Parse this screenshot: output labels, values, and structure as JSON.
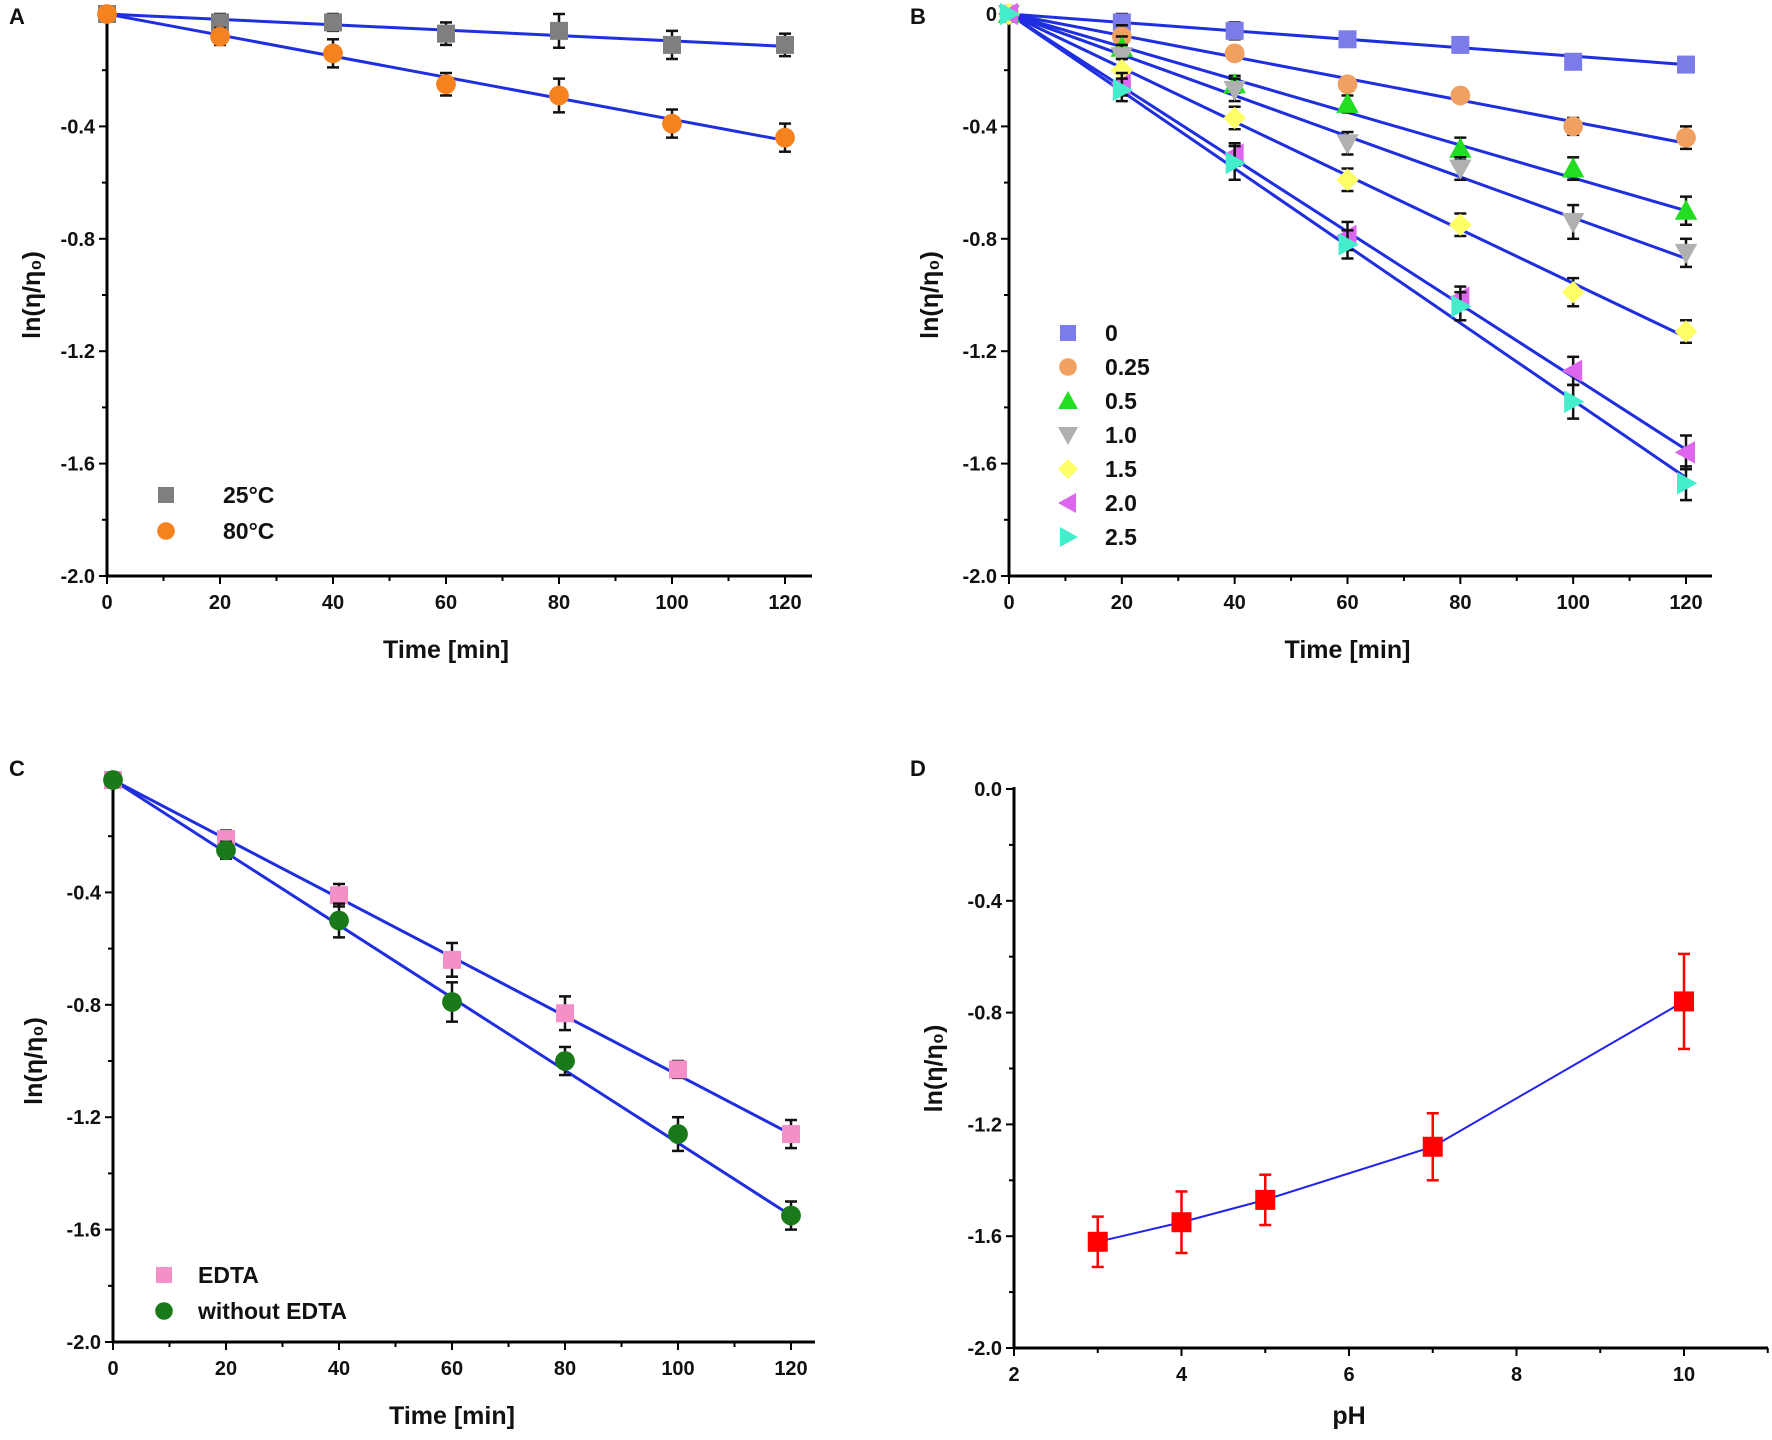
{
  "chart_data": [
    {
      "panel_label": "A",
      "type": "scatter",
      "xlabel": "Time [min]",
      "ylabel": "ln(η/η₀)",
      "xlim": [
        0,
        124
      ],
      "ylim": [
        -2.0,
        0
      ],
      "xticks": [
        0,
        20,
        40,
        60,
        80,
        100,
        120
      ],
      "xtick_labels": [
        "0",
        "20",
        "40",
        "60",
        "80",
        "100",
        "120"
      ],
      "yticks": [
        -0.4,
        -0.8,
        -1.2,
        -1.6,
        -2.0
      ],
      "ytick_labels": [
        "-0.4",
        "-0.8",
        "-1.2",
        "-1.6",
        "-2.0"
      ],
      "legend_position": "bottom-left",
      "fit_line_color": "#1f2fe0",
      "series": [
        {
          "name": "25°C",
          "marker": "square",
          "color": "#7f7f7f",
          "x": [
            0,
            20,
            40,
            60,
            80,
            100,
            120
          ],
          "y": [
            0,
            -0.03,
            -0.03,
            -0.07,
            -0.06,
            -0.11,
            -0.11
          ],
          "error": [
            0,
            0.03,
            0.03,
            0.04,
            0.06,
            0.05,
            0.04
          ],
          "fit": [
            0,
            0,
            120,
            -0.115
          ]
        },
        {
          "name": "80°C",
          "marker": "circle",
          "color": "#f5821f",
          "x": [
            0,
            20,
            40,
            60,
            80,
            100,
            120
          ],
          "y": [
            0,
            -0.08,
            -0.14,
            -0.25,
            -0.29,
            -0.39,
            -0.44
          ],
          "error": [
            0,
            0.03,
            0.05,
            0.04,
            0.06,
            0.05,
            0.05
          ],
          "fit": [
            0,
            0,
            120,
            -0.45
          ]
        }
      ]
    },
    {
      "panel_label": "B",
      "type": "scatter",
      "xlabel": "Time [min]",
      "ylabel": "ln(η/η₀)",
      "xlim": [
        0,
        124
      ],
      "ylim": [
        -2.0,
        0
      ],
      "xticks": [
        0,
        20,
        40,
        60,
        80,
        100,
        120
      ],
      "xtick_labels": [
        "0",
        "20",
        "40",
        "60",
        "80",
        "100",
        "120"
      ],
      "yticks": [
        0,
        -0.4,
        -0.8,
        -1.2,
        -1.6,
        -2.0
      ],
      "ytick_labels": [
        "0",
        "-0.4",
        "-0.8",
        "-1.2",
        "-1.6",
        "-2.0"
      ],
      "legend_position": "bottom-left",
      "fit_line_color": "#1f2fe0",
      "series": [
        {
          "name": "0",
          "marker": "square",
          "color": "#7b7bea",
          "x": [
            0,
            20,
            40,
            60,
            80,
            100,
            120
          ],
          "y": [
            0,
            -0.03,
            -0.06,
            -0.09,
            -0.11,
            -0.17,
            -0.18
          ],
          "error": [
            0,
            0.03,
            0.03,
            0.02,
            0.02,
            0.02,
            0.02
          ],
          "fit": [
            0,
            0,
            120,
            -0.18
          ]
        },
        {
          "name": "0.25",
          "marker": "circle",
          "color": "#f0a060",
          "x": [
            0,
            20,
            40,
            60,
            80,
            100,
            120
          ],
          "y": [
            0,
            -0.08,
            -0.14,
            -0.25,
            -0.29,
            -0.4,
            -0.44
          ],
          "error": [
            0,
            0.04,
            0.02,
            0.02,
            0.02,
            0.03,
            0.04
          ],
          "fit": [
            0,
            0,
            120,
            -0.46
          ]
        },
        {
          "name": "0.5",
          "marker": "triangle-up",
          "color": "#22dd22",
          "x": [
            0,
            20,
            40,
            60,
            80,
            100,
            120
          ],
          "y": [
            0,
            -0.12,
            -0.25,
            -0.32,
            -0.48,
            -0.55,
            -0.7
          ],
          "error": [
            0,
            0.04,
            0.03,
            0.03,
            0.04,
            0.04,
            0.05
          ],
          "fit": [
            0,
            0,
            120,
            -0.7
          ]
        },
        {
          "name": "1.0",
          "marker": "triangle-down",
          "color": "#b0b0b0",
          "x": [
            0,
            20,
            40,
            60,
            80,
            100,
            120
          ],
          "y": [
            0,
            -0.15,
            -0.27,
            -0.46,
            -0.55,
            -0.74,
            -0.85
          ],
          "error": [
            0,
            0.04,
            0.04,
            0.04,
            0.04,
            0.06,
            0.05
          ],
          "fit": [
            0,
            0,
            120,
            -0.87
          ]
        },
        {
          "name": "1.5",
          "marker": "diamond",
          "color": "#ffff66",
          "x": [
            0,
            20,
            40,
            60,
            80,
            100,
            120
          ],
          "y": [
            0,
            -0.2,
            -0.37,
            -0.59,
            -0.75,
            -0.99,
            -1.13
          ],
          "error": [
            0,
            0.04,
            0.04,
            0.04,
            0.04,
            0.05,
            0.04
          ],
          "fit": [
            0,
            0,
            120,
            -1.15
          ]
        },
        {
          "name": "2.0",
          "marker": "triangle-left",
          "color": "#dd66ee",
          "x": [
            0,
            20,
            40,
            60,
            80,
            100,
            120
          ],
          "y": [
            0,
            -0.25,
            -0.5,
            -0.79,
            -1.01,
            -1.27,
            -1.56
          ],
          "error": [
            0,
            0.04,
            0.04,
            0.05,
            0.04,
            0.05,
            0.06
          ],
          "fit": [
            0,
            0,
            120,
            -1.55
          ]
        },
        {
          "name": "2.5",
          "marker": "triangle-right",
          "color": "#44eecc",
          "x": [
            0,
            20,
            40,
            60,
            80,
            100,
            120
          ],
          "y": [
            0,
            -0.27,
            -0.53,
            -0.82,
            -1.04,
            -1.38,
            -1.67
          ],
          "error": [
            0,
            0.04,
            0.06,
            0.05,
            0.05,
            0.06,
            0.06
          ],
          "fit": [
            0,
            0,
            120,
            -1.65
          ]
        }
      ]
    },
    {
      "panel_label": "C",
      "type": "scatter",
      "xlabel": "Time [min]",
      "ylabel": "ln(η/η₀)",
      "xlim": [
        0,
        124
      ],
      "ylim": [
        -2.0,
        0
      ],
      "xticks": [
        0,
        20,
        40,
        60,
        80,
        100,
        120
      ],
      "xtick_labels": [
        "0",
        "20",
        "40",
        "60",
        "80",
        "100",
        "120"
      ],
      "yticks": [
        -0.4,
        -0.8,
        -1.2,
        -1.6,
        -2.0
      ],
      "ytick_labels": [
        "-0.4",
        "-0.8",
        "-1.2",
        "-1.6",
        "-2.0"
      ],
      "legend_position": "bottom-left",
      "fit_line_color": "#1f2fe0",
      "series": [
        {
          "name": "EDTA",
          "marker": "square",
          "color": "#f48fc8",
          "x": [
            0,
            20,
            40,
            60,
            80,
            100,
            120
          ],
          "y": [
            0,
            -0.21,
            -0.41,
            -0.64,
            -0.83,
            -1.03,
            -1.26
          ],
          "error": [
            0,
            0.03,
            0.04,
            0.06,
            0.06,
            0.03,
            0.05
          ],
          "fit": [
            0,
            0,
            120,
            -1.26
          ]
        },
        {
          "name": "without EDTA",
          "marker": "circle",
          "color": "#1a7a1a",
          "x": [
            0,
            20,
            40,
            60,
            80,
            100,
            120
          ],
          "y": [
            0,
            -0.25,
            -0.5,
            -0.79,
            -1.0,
            -1.26,
            -1.55
          ],
          "error": [
            0,
            0.03,
            0.06,
            0.07,
            0.05,
            0.06,
            0.05
          ],
          "fit": [
            0,
            0,
            120,
            -1.55
          ]
        }
      ]
    },
    {
      "panel_label": "D",
      "type": "line",
      "xlabel": "pH",
      "ylabel": "ln(η/η₀)",
      "xlim": [
        2,
        11
      ],
      "ylim": [
        -2.0,
        0
      ],
      "xticks": [
        2,
        4,
        6,
        8,
        10
      ],
      "xtick_labels": [
        "2",
        "4",
        "6",
        "8",
        "10"
      ],
      "yticks": [
        0,
        -0.4,
        -0.8,
        -1.2,
        -1.6,
        -2.0
      ],
      "ytick_labels": [
        "0.0",
        "-0.4",
        "-0.8",
        "-1.2",
        "-1.6",
        "-2.0"
      ],
      "line_color": "#2222ee",
      "series": [
        {
          "marker": "square",
          "color": "#ff0000",
          "x": [
            3,
            4,
            5,
            7,
            10
          ],
          "y": [
            -1.62,
            -1.55,
            -1.47,
            -1.28,
            -0.76
          ],
          "error": [
            0.09,
            0.11,
            0.09,
            0.12,
            0.17
          ]
        }
      ]
    }
  ]
}
